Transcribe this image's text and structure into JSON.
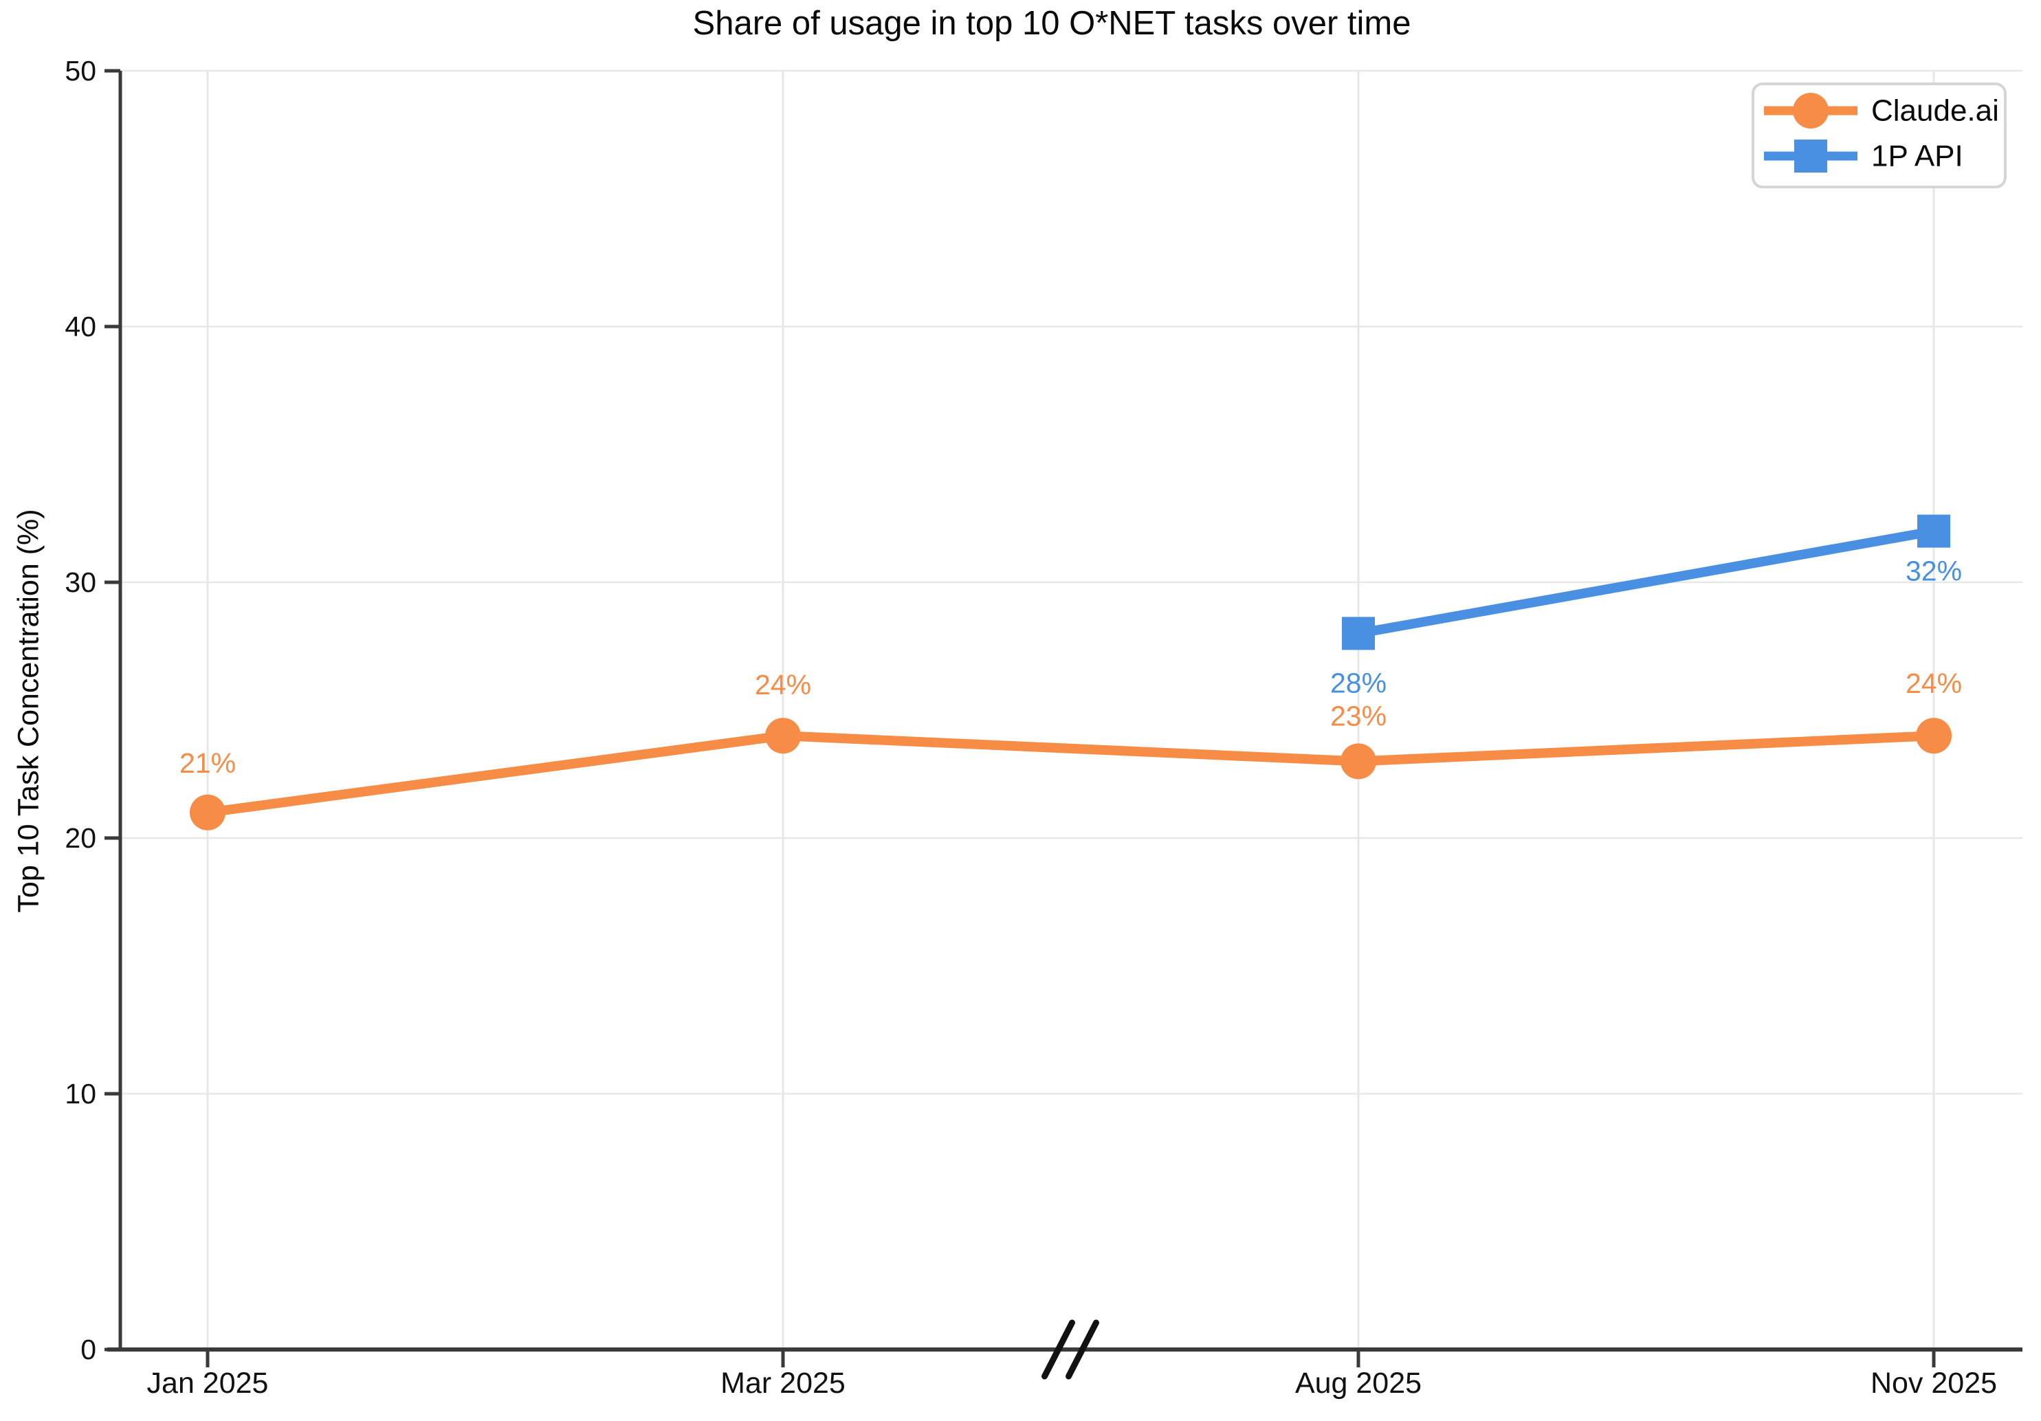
{
  "title": "Share of usage in top 10 O*NET tasks over time",
  "colors": {
    "claude_ai": "#F68C46",
    "api_1p": "#4A90E2",
    "axis": "#3a3a3a",
    "grid": "#e7e7e7",
    "tick_text": "#111111",
    "legend_border": "#d5d5d5",
    "background": "#ffffff"
  },
  "legend": {
    "position": "top-right",
    "items": [
      {
        "label": "Claude.ai",
        "marker": "circle",
        "color": "#F68C46"
      },
      {
        "label": "1P API",
        "marker": "square",
        "color": "#4A90E2"
      }
    ]
  },
  "chart_data": {
    "type": "line",
    "title": "Share of usage in top 10 O*NET tasks over time",
    "xlabel": "",
    "ylabel": "Top 10 Task Concentration (%)",
    "categories": [
      "Jan 2025",
      "Mar 2025",
      "Aug 2025",
      "Nov 2025"
    ],
    "y_ticks": [
      0,
      10,
      20,
      30,
      40,
      50
    ],
    "ylim": [
      0,
      50
    ],
    "grid": true,
    "axis_break": {
      "between": [
        "Mar 2025",
        "Aug 2025"
      ]
    },
    "legend_position": "top-right",
    "series": [
      {
        "name": "Claude.ai",
        "marker": "circle",
        "color": "#F68C46",
        "categories": [
          "Jan 2025",
          "Mar 2025",
          "Aug 2025",
          "Nov 2025"
        ],
        "values": [
          21,
          24,
          23,
          24
        ],
        "point_labels": [
          "21%",
          "24%",
          "23%",
          "24%"
        ],
        "label_dy": [
          -72,
          -74,
          -66,
          -76
        ]
      },
      {
        "name": "1P API",
        "marker": "square",
        "color": "#4A90E2",
        "categories": [
          "Aug 2025",
          "Nov 2025"
        ],
        "values": [
          28,
          32
        ],
        "point_labels": [
          "28%",
          "32%"
        ],
        "label_dy": [
          72,
          58
        ]
      }
    ]
  }
}
